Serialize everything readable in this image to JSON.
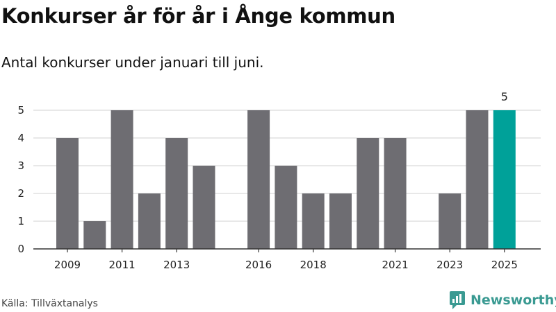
{
  "title": "Konkurser år för år i Ånge kommun",
  "subtitle": "Antal konkurser under januari till juni.",
  "source": "Källa: Tillväxtanalys",
  "brand": {
    "name": "Newsworthy",
    "icon": "newsworthy-logo-icon"
  },
  "colors": {
    "bar": "#6e6d72",
    "highlight": "#00a199",
    "grid": "#d9d9d9",
    "axis": "#333333",
    "brand": "#3a9a92"
  },
  "chart_data": {
    "type": "bar",
    "title": "Konkurser år för år i Ånge kommun",
    "subtitle": "Antal konkurser under januari till juni.",
    "xlabel": "",
    "ylabel": "",
    "categories": [
      "2009",
      "2010",
      "2011",
      "2012",
      "2013",
      "2014",
      "2015",
      "2016",
      "2017",
      "2018",
      "2019",
      "2020",
      "2021",
      "2022",
      "2023",
      "2024",
      "2025"
    ],
    "values": [
      4,
      1,
      5,
      2,
      4,
      3,
      0,
      5,
      3,
      2,
      2,
      4,
      4,
      0,
      2,
      5,
      5
    ],
    "highlight_category": "2025",
    "data_labels": [
      {
        "category": "2025",
        "text": "5"
      }
    ],
    "x_tick_labels": [
      "2009",
      "2011",
      "2013",
      "2016",
      "2018",
      "2021",
      "2023",
      "2025"
    ],
    "y_ticks": [
      0,
      1,
      2,
      3,
      4,
      5
    ],
    "ylim": [
      0,
      5
    ],
    "grid": true,
    "legend": "none"
  }
}
